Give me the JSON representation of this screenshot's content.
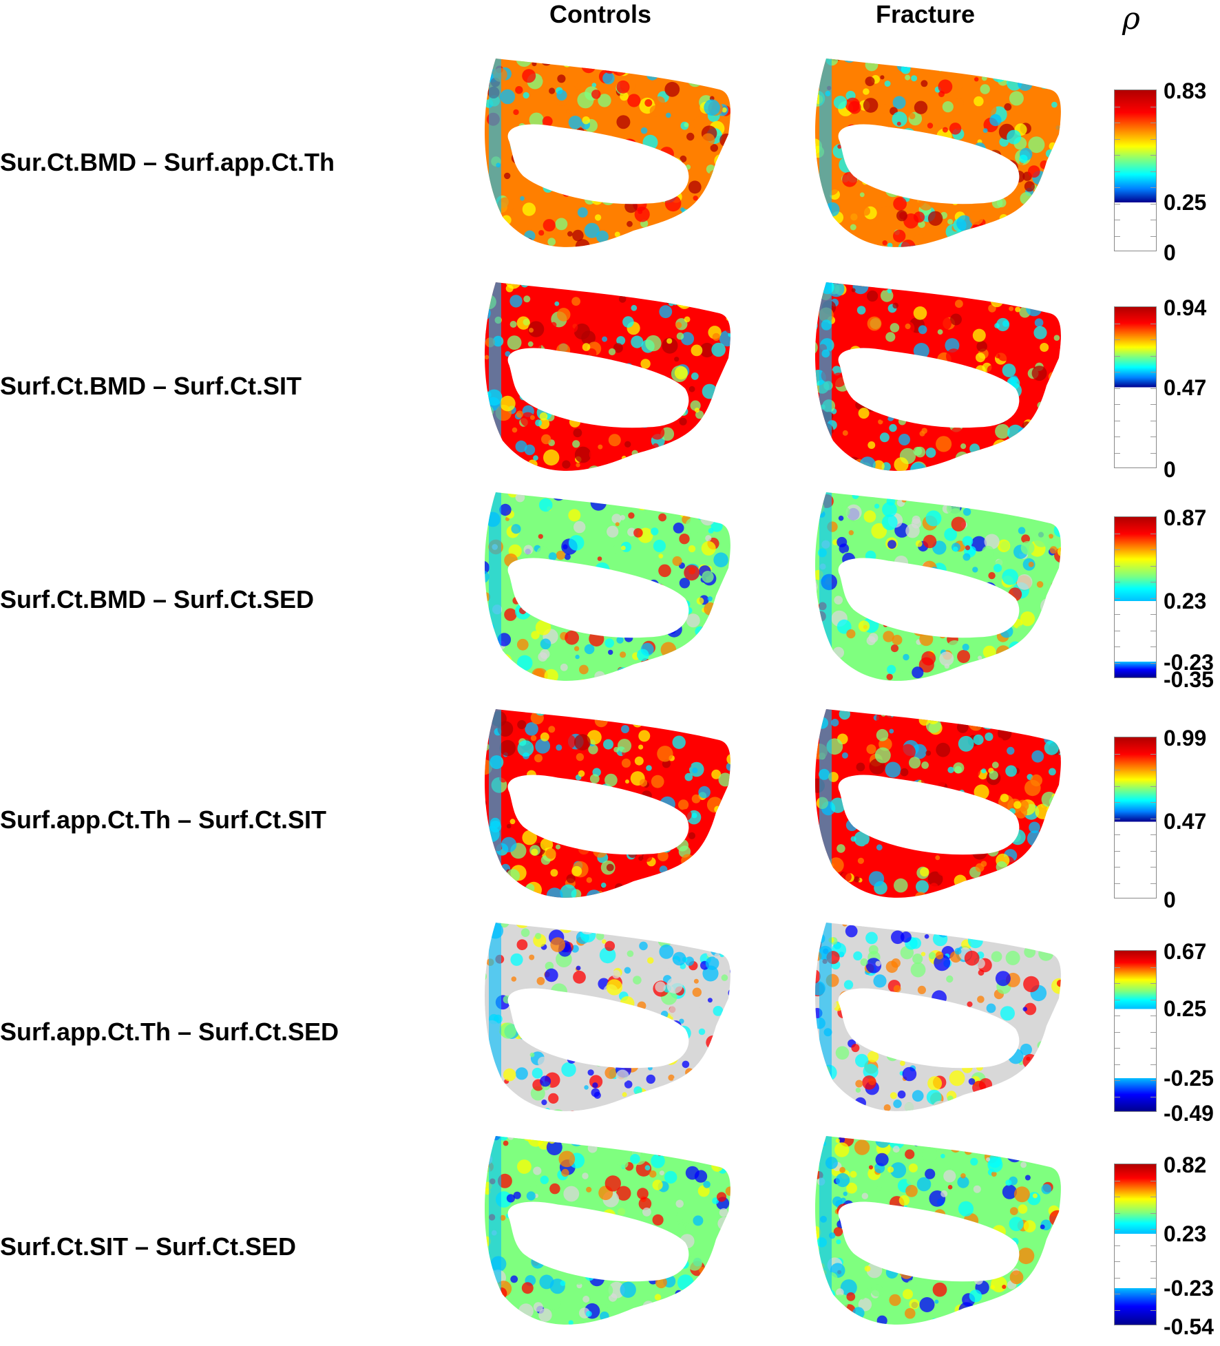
{
  "header": {
    "col_controls": "Controls",
    "col_fracture": "Fracture",
    "cbar_symbol": "ρ"
  },
  "rows": [
    {
      "label": "Sur.Ct.BMD – Surf.app.Ct.Th",
      "ticks": [
        "0.83",
        "0.25",
        "0"
      ],
      "cbar_type": "positive",
      "high": 0.83,
      "mid": 0.25,
      "low": 0
    },
    {
      "label": "Surf.Ct.BMD – Surf.Ct.SIT",
      "ticks": [
        "0.94",
        "0.47",
        "0"
      ],
      "cbar_type": "positive",
      "high": 0.94,
      "mid": 0.47,
      "low": 0
    },
    {
      "label": "Surf.Ct.BMD – Surf.Ct.SED",
      "ticks": [
        "0.87",
        "0.23",
        "-0.23",
        "-0.35"
      ],
      "cbar_type": "diverging",
      "high": 0.87,
      "upper_threshold": 0.23,
      "lower_threshold": -0.23,
      "low": -0.35
    },
    {
      "label": "Surf.app.Ct.Th – Surf.Ct.SIT",
      "ticks": [
        "0.99",
        "0.47",
        "0"
      ],
      "cbar_type": "positive",
      "high": 0.99,
      "mid": 0.47,
      "low": 0
    },
    {
      "label": "Surf.app.Ct.Th – Surf.Ct.SED",
      "ticks": [
        "0.67",
        "0.25",
        "-0.25",
        "-0.49"
      ],
      "cbar_type": "diverging",
      "high": 0.67,
      "upper_threshold": 0.25,
      "lower_threshold": -0.25,
      "low": -0.49
    },
    {
      "label": "Surf.Ct.SIT – Surf.Ct.SED",
      "ticks": [
        "0.82",
        "0.23",
        "-0.23",
        "-0.54"
      ],
      "cbar_type": "diverging",
      "high": 0.82,
      "upper_threshold": 0.23,
      "lower_threshold": -0.23,
      "low": -0.54
    }
  ],
  "colors": {
    "jet": [
      "#00008f",
      "#0000ff",
      "#00bfff",
      "#00ffff",
      "#7fff7f",
      "#ffff00",
      "#ff7f00",
      "#ff0000",
      "#b00000"
    ],
    "bone_white": "#d8d8d8"
  }
}
